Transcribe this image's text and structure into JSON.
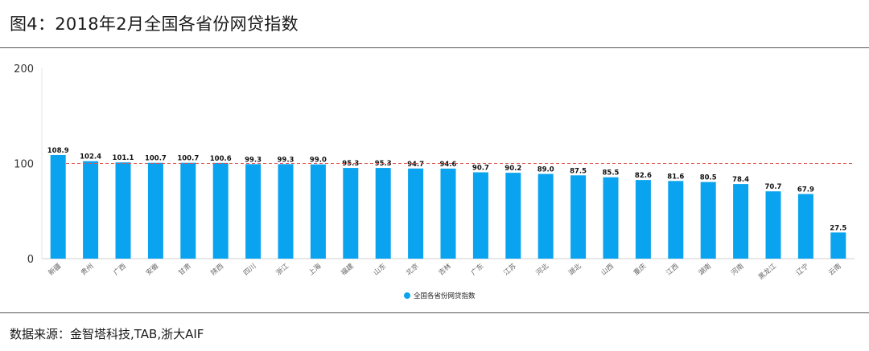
{
  "figure": {
    "title": "图4：2018年2月全国各省份网贷指数",
    "source": "数据来源：金智塔科技,TAB,浙大AIF"
  },
  "chart_data": {
    "type": "bar",
    "title": "",
    "xlabel": "",
    "ylabel": "",
    "ylim": [
      0,
      200
    ],
    "yticks": [
      0,
      100,
      200
    ],
    "reference_line": {
      "value": 100,
      "color": "#e05555",
      "style": "dashed"
    },
    "bar_color": "#0aa3ef",
    "legend": "全国各省份网贷指数",
    "legend_position": "bottom-center",
    "categories": [
      "新疆",
      "贵州",
      "广西",
      "安徽",
      "甘肃",
      "陕西",
      "四川",
      "浙江",
      "上海",
      "福建",
      "山东",
      "北京",
      "吉林",
      "广东",
      "江苏",
      "河北",
      "湖北",
      "山西",
      "重庆",
      "江西",
      "湖南",
      "河南",
      "黑龙江",
      "辽宁",
      "云南"
    ],
    "values": [
      108.9,
      102.4,
      101.1,
      100.7,
      100.7,
      100.6,
      99.3,
      99.3,
      99.0,
      95.3,
      95.3,
      94.7,
      94.6,
      90.7,
      90.2,
      89.0,
      87.5,
      85.5,
      82.6,
      81.6,
      80.5,
      78.4,
      70.7,
      67.9,
      27.5
    ],
    "value_labels": [
      "108.9",
      "102.4",
      "101.1",
      "100.7",
      "100.7",
      "100.6",
      "99.3",
      "99.3",
      "99.0",
      "95.3",
      "95.3",
      "94.7",
      "94.6",
      "90.7",
      "90.2",
      "89.0",
      "87.5",
      "85.5",
      "82.6",
      "81.6",
      "80.5",
      "78.4",
      "70.7",
      "67.9",
      "27.5"
    ]
  }
}
